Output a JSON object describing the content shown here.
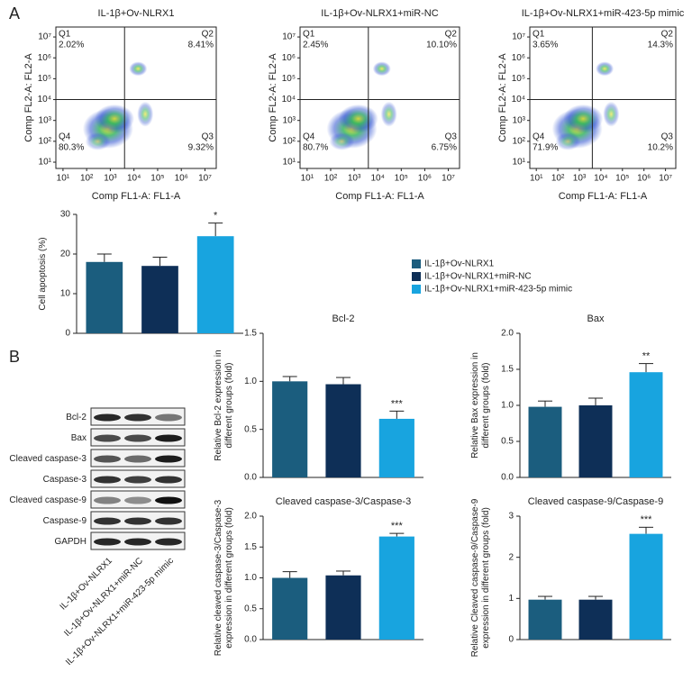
{
  "panel_labels": [
    "A",
    "B"
  ],
  "western_blot": {
    "proteins": [
      "Bcl-2",
      "Bax",
      "Cleaved caspase-3",
      "Caspase-3",
      "Cleaved caspase-9",
      "Caspase-9",
      "GAPDH"
    ],
    "lanes": [
      "IL-1β+Ov-NLRX1",
      "IL-1β+Ov-NLRX1+miR-NC",
      "IL-1β+Ov-NLRX1+miR-423-5p mimic"
    ]
  },
  "chart_data": [
    {
      "type": "flow",
      "title": "IL-1β+Ov-NLRX1",
      "xlabel": "Comp FL1-A: FL1-A",
      "ylabel": "Comp FL2-A: FL2-A",
      "log_scale": true,
      "xlim": [
        5,
        30000000
      ],
      "ylim": [
        5,
        30000000
      ],
      "xticks": [
        {
          "value": 10,
          "label": "10¹"
        },
        {
          "value": 100,
          "label": "10²"
        },
        {
          "value": 1000,
          "label": "10³"
        },
        {
          "value": 10000,
          "label": "10⁴"
        },
        {
          "value": 100000,
          "label": "10⁵"
        },
        {
          "value": 1000000,
          "label": "10⁶"
        },
        {
          "value": 10000000,
          "label": "10⁷"
        }
      ],
      "yticks": [
        {
          "value": 10,
          "label": "10¹"
        },
        {
          "value": 100,
          "label": "10²"
        },
        {
          "value": 1000,
          "label": "10³"
        },
        {
          "value": 10000,
          "label": "10⁴"
        },
        {
          "value": 100000,
          "label": "10⁵"
        },
        {
          "value": 1000000,
          "label": "10⁶"
        },
        {
          "value": 10000000,
          "label": "10⁷"
        }
      ],
      "gates": {
        "x": 4000,
        "y": 10000
      },
      "quadrants": [
        "Q1",
        "Q2",
        "Q3",
        "Q4"
      ],
      "values": [
        2.02,
        8.41,
        9.32,
        80.3
      ],
      "value_labels": [
        "2.02%",
        "8.41%",
        "9.32%",
        "80.3%"
      ]
    },
    {
      "type": "flow",
      "title": "IL-1β+Ov-NLRX1+miR-NC",
      "xlabel": "Comp FL1-A: FL1-A",
      "ylabel": "Comp FL2-A: FL2-A",
      "log_scale": true,
      "xlim": [
        5,
        30000000
      ],
      "ylim": [
        5,
        30000000
      ],
      "xticks": [
        {
          "value": 10,
          "label": "10¹"
        },
        {
          "value": 100,
          "label": "10²"
        },
        {
          "value": 1000,
          "label": "10³"
        },
        {
          "value": 10000,
          "label": "10⁴"
        },
        {
          "value": 100000,
          "label": "10⁵"
        },
        {
          "value": 1000000,
          "label": "10⁶"
        },
        {
          "value": 10000000,
          "label": "10⁷"
        }
      ],
      "yticks": [
        {
          "value": 10,
          "label": "10¹"
        },
        {
          "value": 100,
          "label": "10²"
        },
        {
          "value": 1000,
          "label": "10³"
        },
        {
          "value": 10000,
          "label": "10⁴"
        },
        {
          "value": 100000,
          "label": "10⁵"
        },
        {
          "value": 1000000,
          "label": "10⁶"
        },
        {
          "value": 10000000,
          "label": "10⁷"
        }
      ],
      "gates": {
        "x": 4000,
        "y": 10000
      },
      "quadrants": [
        "Q1",
        "Q2",
        "Q3",
        "Q4"
      ],
      "values": [
        2.45,
        10.1,
        6.75,
        80.7
      ],
      "value_labels": [
        "2.45%",
        "10.10%",
        "6.75%",
        "80.7%"
      ]
    },
    {
      "type": "flow",
      "title": "IL-1β+Ov-NLRX1+miR-423-5p mimic",
      "xlabel": "Comp FL1-A: FL1-A",
      "ylabel": "Comp FL2-A: FL2-A",
      "log_scale": true,
      "xlim": [
        5,
        30000000
      ],
      "ylim": [
        5,
        30000000
      ],
      "xticks": [
        {
          "value": 10,
          "label": "10¹"
        },
        {
          "value": 100,
          "label": "10²"
        },
        {
          "value": 1000,
          "label": "10³"
        },
        {
          "value": 10000,
          "label": "10⁴"
        },
        {
          "value": 100000,
          "label": "10⁵"
        },
        {
          "value": 1000000,
          "label": "10⁶"
        },
        {
          "value": 10000000,
          "label": "10⁷"
        }
      ],
      "yticks": [
        {
          "value": 10,
          "label": "10¹"
        },
        {
          "value": 100,
          "label": "10²"
        },
        {
          "value": 1000,
          "label": "10³"
        },
        {
          "value": 10000,
          "label": "10⁴"
        },
        {
          "value": 100000,
          "label": "10⁵"
        },
        {
          "value": 1000000,
          "label": "10⁶"
        },
        {
          "value": 10000000,
          "label": "10⁷"
        }
      ],
      "gates": {
        "x": 4000,
        "y": 10000
      },
      "quadrants": [
        "Q1",
        "Q2",
        "Q3",
        "Q4"
      ],
      "values": [
        3.65,
        14.3,
        10.2,
        71.9
      ],
      "value_labels": [
        "3.65%",
        "14.3%",
        "10.2%",
        "71.9%"
      ]
    },
    {
      "type": "bar",
      "ylabel": [
        "Cell apoptosis (%)"
      ],
      "ylim": [
        0,
        30
      ],
      "yticks": [
        0,
        10,
        20,
        30
      ],
      "values": [
        18,
        17,
        24.5
      ],
      "errors": [
        2,
        2.2,
        3.3
      ],
      "colors": [
        "#1b5d7e",
        "#0e2f57",
        "#18a4df"
      ],
      "annotations": [
        {
          "index": 2,
          "text": "*"
        }
      ],
      "group_names": [
        "IL-1β+Ov-NLRX1",
        "IL-1β+Ov-NLRX1+miR-NC",
        "IL-1β+Ov-NLRX1+miR-423-5p mimic"
      ]
    },
    {
      "type": "bar",
      "title": "Bcl-2",
      "ylabel": [
        "Relative Bcl-2 expression in",
        "different groups (fold)"
      ],
      "ylim": [
        0,
        1.5
      ],
      "yticks": [
        {
          "value": 0,
          "label": "0.0"
        },
        0.5,
        {
          "value": 1,
          "label": "1.0"
        },
        1.5
      ],
      "values": [
        1.0,
        0.97,
        0.61
      ],
      "errors": [
        0.05,
        0.07,
        0.08
      ],
      "colors": [
        "#1b5d7e",
        "#0e2f57",
        "#18a4df"
      ],
      "annotations": [
        {
          "index": 2,
          "text": "***"
        }
      ]
    },
    {
      "type": "bar",
      "title": "Bax",
      "ylabel": [
        "Relative Bax expression in",
        "different groups (fold)"
      ],
      "ylim": [
        0,
        2
      ],
      "yticks": [
        {
          "value": 0,
          "label": "0.0"
        },
        0.5,
        {
          "value": 1,
          "label": "1.0"
        },
        1.5,
        {
          "value": 2,
          "label": "2.0"
        }
      ],
      "values": [
        0.98,
        1.0,
        1.46
      ],
      "errors": [
        0.08,
        0.1,
        0.12
      ],
      "colors": [
        "#1b5d7e",
        "#0e2f57",
        "#18a4df"
      ],
      "annotations": [
        {
          "index": 2,
          "text": "**"
        }
      ]
    },
    {
      "type": "bar",
      "title": "Cleaved caspase-3/Caspase-3",
      "ylabel": [
        "Relative cleaved caspase-3/Caspase-3",
        "expression in different groups (fold)"
      ],
      "ylim": [
        0,
        2
      ],
      "yticks": [
        {
          "value": 0,
          "label": "0.0"
        },
        0.5,
        {
          "value": 1,
          "label": "1.0"
        },
        1.5,
        {
          "value": 2,
          "label": "2.0"
        }
      ],
      "values": [
        1.0,
        1.04,
        1.67
      ],
      "errors": [
        0.1,
        0.07,
        0.05
      ],
      "colors": [
        "#1b5d7e",
        "#0e2f57",
        "#18a4df"
      ],
      "annotations": [
        {
          "index": 2,
          "text": "***"
        }
      ]
    },
    {
      "type": "bar",
      "title": "Cleaved caspase-9/Caspase-9",
      "ylabel": [
        "Relative Cleaved caspase-9/Caspase-9",
        "expression in different groups (fold)"
      ],
      "ylim": [
        0,
        3
      ],
      "yticks": [
        0,
        1,
        2,
        3
      ],
      "values": [
        0.97,
        0.97,
        2.57
      ],
      "errors": [
        0.08,
        0.08,
        0.16
      ],
      "colors": [
        "#1b5d7e",
        "#0e2f57",
        "#18a4df"
      ],
      "annotations": [
        {
          "index": 2,
          "text": "***"
        }
      ]
    }
  ]
}
